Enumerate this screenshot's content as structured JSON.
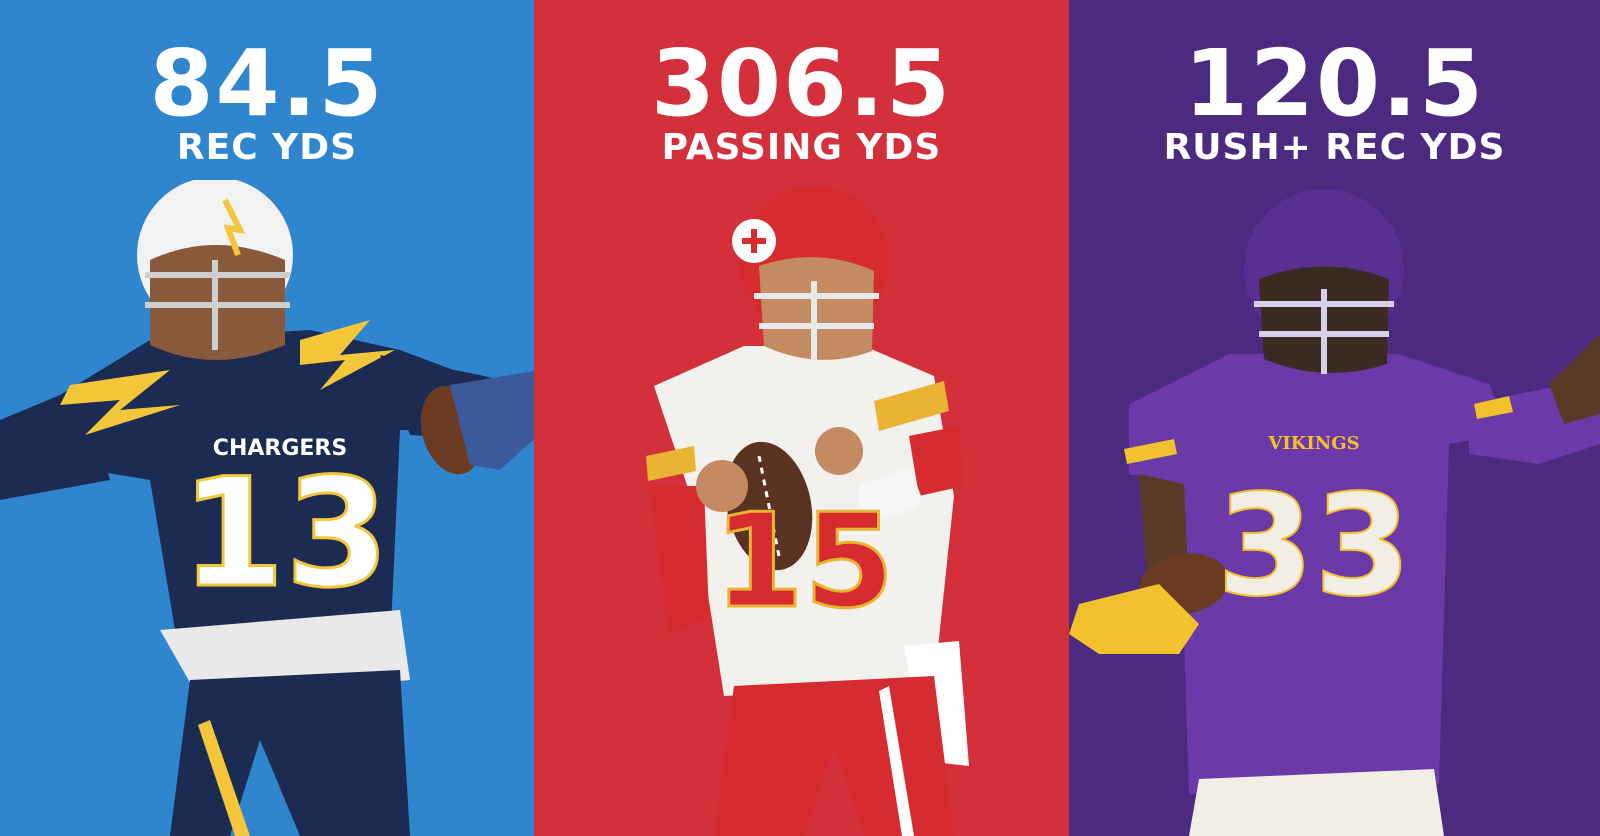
{
  "panels": [
    {
      "value": "84.5",
      "label": "REC YDS",
      "background": "#2f86cf",
      "player": {
        "jersey_number": "13",
        "jersey_text": "CHARGERS",
        "jersey_color": "#1c2b52",
        "helmet_color": "#f2f2f2",
        "accent_color": "#f4c73b"
      }
    },
    {
      "value": "306.5",
      "label": "PASSING YDS",
      "background": "#d3303c",
      "player": {
        "jersey_number": "15",
        "jersey_color": "#f3f1ee",
        "helmet_color": "#d62c2f",
        "accent_color": "#e8b431"
      }
    },
    {
      "value": "120.5",
      "label": "RUSH+ REC YDS",
      "background": "#4b2a80",
      "player": {
        "jersey_number": "33",
        "jersey_text": "VIKINGS",
        "jersey_color": "#6b3aa8",
        "helmet_color": "#5a2f92",
        "accent_color": "#f2c22e"
      }
    }
  ]
}
